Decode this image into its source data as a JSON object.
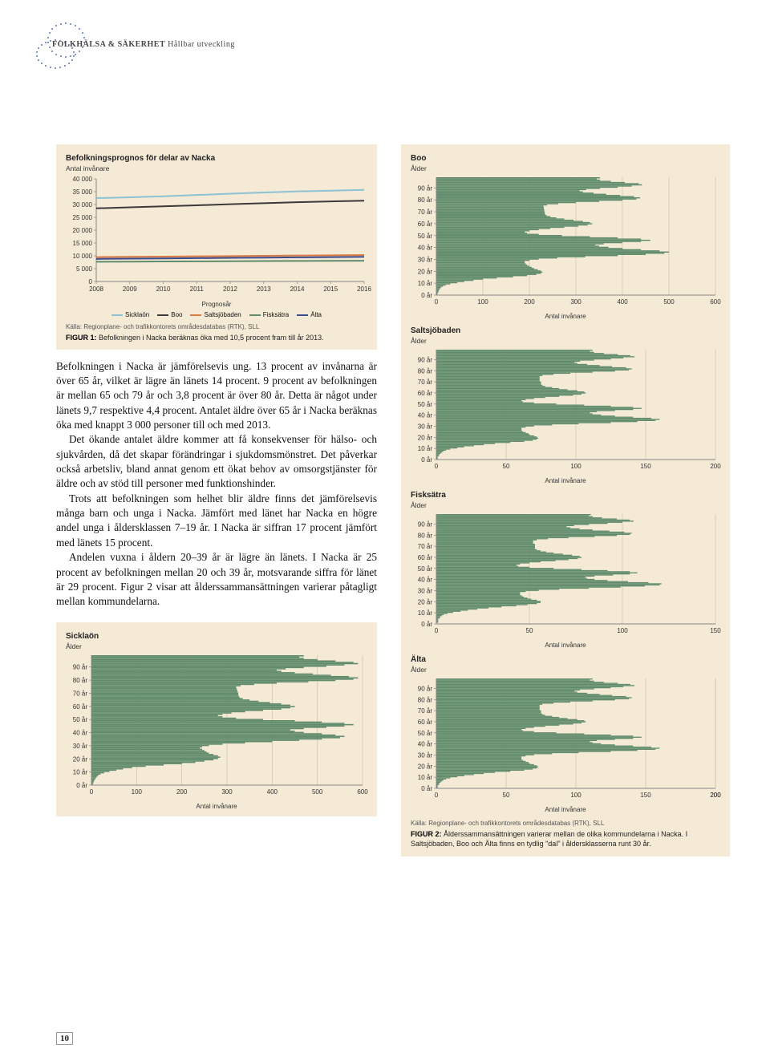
{
  "header": {
    "bold": "FOLKHÄLSA & SÄKERHET",
    "light": "Hållbar utveckling"
  },
  "page_number": "10",
  "line_chart": {
    "type": "line",
    "title": "Befolkningsprognos för delar av Nacka",
    "subtitle": "Antal invånare",
    "x_axis_label": "Prognosår",
    "ylim": [
      0,
      40000
    ],
    "yticks": [
      0,
      5000,
      10000,
      15000,
      20000,
      25000,
      30000,
      35000,
      40000
    ],
    "ytick_labels": [
      "0",
      "5 000",
      "10 000",
      "15 000",
      "20 000",
      "25 000",
      "30 000",
      "35 000",
      "40 000"
    ],
    "xticks": [
      2008,
      2009,
      2010,
      2011,
      2012,
      2013,
      2014,
      2015,
      2016
    ],
    "series": [
      {
        "name": "Sicklaön",
        "color": "#8bc3d4",
        "values": [
          32500,
          32800,
          33200,
          33700,
          34200,
          34700,
          35100,
          35400,
          35700
        ]
      },
      {
        "name": "Boo",
        "color": "#3a3a3a",
        "values": [
          28500,
          28900,
          29300,
          29700,
          30100,
          30500,
          30900,
          31200,
          31500
        ]
      },
      {
        "name": "Saltsjöbaden",
        "color": "#d97a42",
        "values": [
          9500,
          9600,
          9700,
          9800,
          9900,
          10000,
          10100,
          10200,
          10300
        ]
      },
      {
        "name": "Fisksätra",
        "color": "#5f8b6b",
        "values": [
          7700,
          7750,
          7800,
          7850,
          7900,
          7950,
          8000,
          8050,
          8100
        ]
      },
      {
        "name": "Älta",
        "color": "#3a4d8f",
        "values": [
          8800,
          8900,
          9000,
          9100,
          9200,
          9300,
          9400,
          9500,
          9600
        ]
      }
    ],
    "background_color": "#f5ead6",
    "grid_color": "#d9cdb5",
    "line_width": 2
  },
  "source": "Källa: Regionplane- och trafikkontorets områdesdatabas (RTK), SLL",
  "figur1": {
    "label": "FIGUR 1:",
    "text": " Befolkningen i Nacka beräknas öka med 10,5 procent fram till år 2013."
  },
  "body": {
    "p1": "Befolkningen i Nacka är jämförelsevis ung. 13 procent av invånarna är över 65 år, vilket är lägre än länets 14 procent. 9 procent av befolkningen är mellan 65 och 79 år och 3,8 procent är över 80 år. Detta är något under länets 9,7 respektive 4,4 procent. Antalet äldre över 65 år i Nacka beräknas öka med knappt 3 000 personer till och med 2013.",
    "p2": "Det ökande antalet äldre kommer att få konsekvenser för hälso- och sjukvården, då det skapar förändringar i sjukdomsmönstret. Det påverkar också arbetsliv, bland annat genom ett ökat behov av omsorgstjänster för äldre och av stöd till personer med funktionshinder.",
    "p3": "Trots att befolkningen som helhet blir äldre finns det jämförelsevis många barn och unga i Nacka. Jämfört med länet har Nacka en högre andel unga i åldersklassen 7–19 år. I Nacka är siffran 17 procent jämfört med länets 15 procent.",
    "p4": "Andelen vuxna i åldern 20–39 år är lägre än länets. I Nacka är 25 procent av befolkningen mellan 20 och 39 år, motsvarande siffra för länet är 29 procent. Figur 2 visar att ålderssammansättningen varierar påtagligt mellan kommundelarna."
  },
  "pyramids": {
    "age_ticks": [
      "90 år",
      "80 år",
      "70 år",
      "60 år",
      "50 år",
      "40 år",
      "30 år",
      "20 år",
      "10 år",
      "0 år"
    ],
    "y_label": "Ålder",
    "x_label": "Antal invånare",
    "bar_color": "#5f8b6b",
    "grid_color": "#cfc2a5",
    "sicklaon": {
      "title": "Sicklaön",
      "xmax": 600,
      "xticks": [
        0,
        100,
        200,
        300,
        400,
        500,
        600
      ],
      "values": [
        3,
        4,
        5,
        6,
        8,
        10,
        12,
        15,
        20,
        28,
        40,
        55,
        70,
        90,
        120,
        160,
        200,
        230,
        250,
        270,
        280,
        285,
        280,
        270,
        260,
        255,
        250,
        245,
        240,
        245,
        260,
        290,
        340,
        400,
        460,
        510,
        550,
        560,
        540,
        510,
        470,
        450,
        440,
        470,
        520,
        560,
        580,
        560,
        510,
        450,
        380,
        320,
        290,
        280,
        290,
        310,
        340,
        380,
        420,
        440,
        450,
        440,
        420,
        395,
        370,
        350,
        335,
        328,
        326,
        325,
        325,
        324,
        323,
        322,
        321,
        320,
        330,
        360,
        410,
        480,
        540,
        580,
        590,
        570,
        530,
        490,
        450,
        420,
        410,
        430,
        470,
        520,
        560,
        590,
        580,
        540,
        500,
        470,
        460,
        470
      ]
    },
    "boo": {
      "title": "Boo",
      "xmax": 600,
      "xticks": [
        0,
        100,
        200,
        300,
        400,
        500,
        600
      ],
      "values": [
        2,
        3,
        4,
        5,
        6,
        8,
        10,
        14,
        20,
        30,
        45,
        60,
        80,
        100,
        130,
        165,
        195,
        215,
        225,
        228,
        225,
        218,
        210,
        205,
        200,
        195,
        192,
        190,
        190,
        200,
        220,
        260,
        320,
        390,
        450,
        490,
        500,
        480,
        440,
        400,
        370,
        350,
        342,
        360,
        400,
        440,
        460,
        440,
        390,
        330,
        270,
        220,
        195,
        190,
        200,
        220,
        245,
        275,
        305,
        325,
        335,
        330,
        315,
        295,
        275,
        258,
        245,
        237,
        234,
        233,
        233,
        232,
        232,
        231,
        231,
        230,
        238,
        262,
        300,
        350,
        400,
        430,
        438,
        425,
        395,
        365,
        338,
        315,
        308,
        322,
        352,
        390,
        420,
        442,
        435,
        405,
        375,
        352,
        345,
        352
      ]
    },
    "saltsjobaden": {
      "title": "Saltsjöbaden",
      "xmax": 200,
      "xticks": [
        0,
        50,
        100,
        150,
        200
      ],
      "values": [
        1,
        1,
        1,
        2,
        2,
        3,
        4,
        5,
        7,
        10,
        15,
        20,
        27,
        34,
        42,
        53,
        63,
        69,
        72,
        73,
        72,
        70,
        67,
        66,
        64,
        62,
        61,
        61,
        61,
        64,
        70,
        83,
        102,
        125,
        144,
        157,
        160,
        154,
        141,
        128,
        118,
        112,
        110,
        115,
        128,
        141,
        147,
        141,
        125,
        106,
        86,
        70,
        62,
        61,
        64,
        70,
        78,
        88,
        98,
        104,
        107,
        106,
        101,
        94,
        88,
        83,
        78,
        76,
        75,
        75,
        75,
        74,
        74,
        74,
        74,
        74,
        76,
        84,
        96,
        112,
        128,
        138,
        140,
        136,
        126,
        117,
        108,
        101,
        99,
        103,
        113,
        125,
        134,
        142,
        139,
        130,
        120,
        113,
        110,
        112
      ]
    },
    "fisksatra": {
      "title": "Fisksätra",
      "xmax": 150,
      "xticks": [
        0,
        50,
        100,
        150
      ],
      "values": [
        0,
        1,
        1,
        1,
        1,
        2,
        2,
        3,
        4,
        6,
        9,
        13,
        17,
        22,
        28,
        35,
        43,
        49,
        54,
        56,
        56,
        54,
        51,
        49,
        47,
        46,
        45,
        45,
        45,
        48,
        55,
        66,
        82,
        99,
        112,
        120,
        121,
        114,
        103,
        92,
        85,
        81,
        80,
        85,
        95,
        104,
        108,
        104,
        92,
        78,
        63,
        50,
        44,
        43,
        45,
        50,
        56,
        64,
        71,
        76,
        78,
        77,
        73,
        68,
        63,
        59,
        56,
        54,
        53,
        53,
        53,
        53,
        53,
        52,
        52,
        52,
        54,
        60,
        71,
        85,
        97,
        104,
        105,
        101,
        93,
        84,
        77,
        72,
        70,
        74,
        82,
        92,
        100,
        106,
        104,
        97,
        89,
        84,
        82,
        83
      ]
    },
    "alta": {
      "title": "Älta",
      "xmax": 200,
      "xticks": [
        0,
        50,
        100,
        150,
        200,
        200
      ],
      "values": [
        1,
        1,
        1,
        2,
        2,
        3,
        4,
        5,
        7,
        10,
        15,
        20,
        27,
        34,
        42,
        53,
        63,
        69,
        72,
        73,
        72,
        70,
        67,
        66,
        64,
        62,
        61,
        61,
        61,
        64,
        70,
        83,
        102,
        125,
        144,
        157,
        160,
        154,
        141,
        128,
        118,
        112,
        110,
        115,
        128,
        141,
        147,
        141,
        125,
        106,
        86,
        70,
        62,
        61,
        64,
        70,
        78,
        88,
        98,
        104,
        107,
        106,
        101,
        94,
        88,
        83,
        78,
        76,
        75,
        75,
        75,
        74,
        74,
        74,
        74,
        74,
        76,
        84,
        96,
        112,
        128,
        138,
        140,
        136,
        126,
        117,
        108,
        101,
        99,
        103,
        113,
        125,
        134,
        142,
        139,
        130,
        120,
        113,
        110,
        112
      ]
    }
  },
  "figur2": {
    "label": "FIGUR 2:",
    "text": " Ålderssammansättningen varierar mellan de olika kommundelarna i Nacka. I Saltsjöbaden, Boo och Älta finns en tydlig \"dal\" i åldersklasserna runt 30 år."
  }
}
